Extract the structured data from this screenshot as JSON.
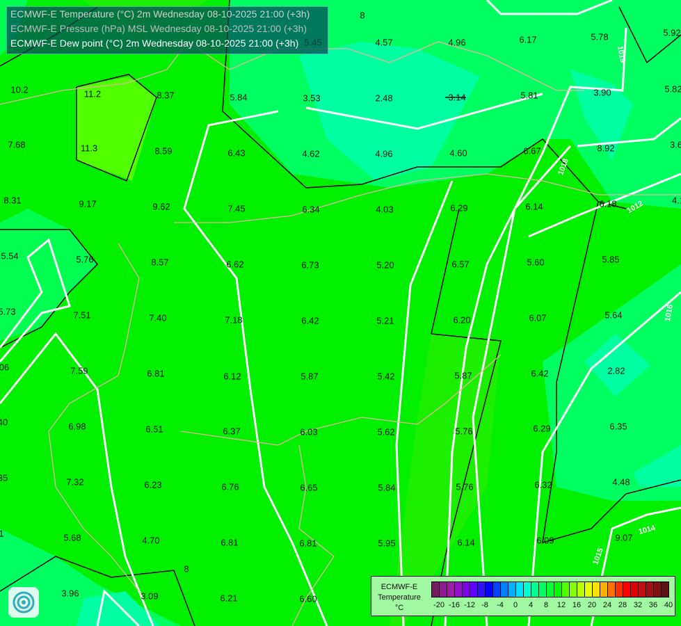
{
  "header": {
    "lines": [
      "ECMWF-E Temperature (°C) 2m Wednesday 08-10-2025 21:00 (+3h)",
      "ECMWF-E Pressure (hPa) MSL Wednesday 08-10-2025 21:00 (+3h)",
      "ECMWF-E Dew point (°C) 2m Wednesday 08-10-2025 21:00 (+3h)"
    ]
  },
  "legend": {
    "title": "ECMWF-E",
    "subtitle": "Temperature",
    "unit": "°C",
    "ticks": [
      "-20",
      "-16",
      "-12",
      "-8",
      "-4",
      "0",
      "4",
      "8",
      "12",
      "16",
      "20",
      "24",
      "28",
      "32",
      "36",
      "40"
    ],
    "colors": [
      "#751a5e",
      "#901a90",
      "#a01aaa",
      "#9410c8",
      "#8000e6",
      "#6000ff",
      "#3010ff",
      "#0000ff",
      "#0040ff",
      "#0080ff",
      "#00b0ff",
      "#00e0ff",
      "#00ffd0",
      "#00ff90",
      "#00ff60",
      "#00ff30",
      "#00ff00",
      "#50ff00",
      "#80ff00",
      "#b8ff00",
      "#e8ff00",
      "#ffe000",
      "#ffb000",
      "#ff7000",
      "#ff3000",
      "#ff0000",
      "#e00000",
      "#c01010",
      "#a01010",
      "#801010",
      "#601010"
    ]
  },
  "values": [
    "5.45",
    "4.57",
    "4.96",
    "6.17",
    "5.78",
    "5.92",
    "10.2",
    "11.2",
    "8.37",
    "5.84",
    "3.53",
    "2.48",
    "3.14",
    "5.81",
    "3.90",
    "5.82",
    "7.68",
    "11.3",
    "8.59",
    "6.43",
    "4.62",
    "4.96",
    "4.60",
    "6.67",
    "8.92",
    "3.6",
    "8.31",
    "9.17",
    "9.62",
    "7.45",
    "6.34",
    "4.03",
    "6.29",
    "6.14",
    "6.18",
    "4.1",
    "5.54",
    "5.76",
    "8.57",
    "6.62",
    "6.73",
    "5.20",
    "6.57",
    "5.60",
    "5.85",
    "5.73",
    "7.51",
    "7.40",
    "7.18",
    "6.42",
    "5.21",
    "6.20",
    "6.07",
    "5.64",
    "06",
    "7.59",
    "6.81",
    "6.12",
    "5.87",
    "5.42",
    "5.87",
    "6.42",
    "2.82",
    "40",
    "6.98",
    "6.51",
    "6.37",
    "6.03",
    "5.62",
    "5.76",
    "6.29",
    "6.35",
    "35",
    "7.32",
    "6.23",
    "6.76",
    "6.65",
    "5.84",
    "5.76",
    "6.32",
    "4.48",
    "1",
    "5.68",
    "4.70",
    "6.81",
    "6.81",
    "5.95",
    "6.14",
    "6.09",
    "9.07",
    "3.96",
    "3.09",
    "6.21",
    "6.60"
  ],
  "isobar_labels": [
    "1019",
    "1018",
    "1012",
    "1016",
    "1014",
    "1015",
    "8",
    "8"
  ]
}
